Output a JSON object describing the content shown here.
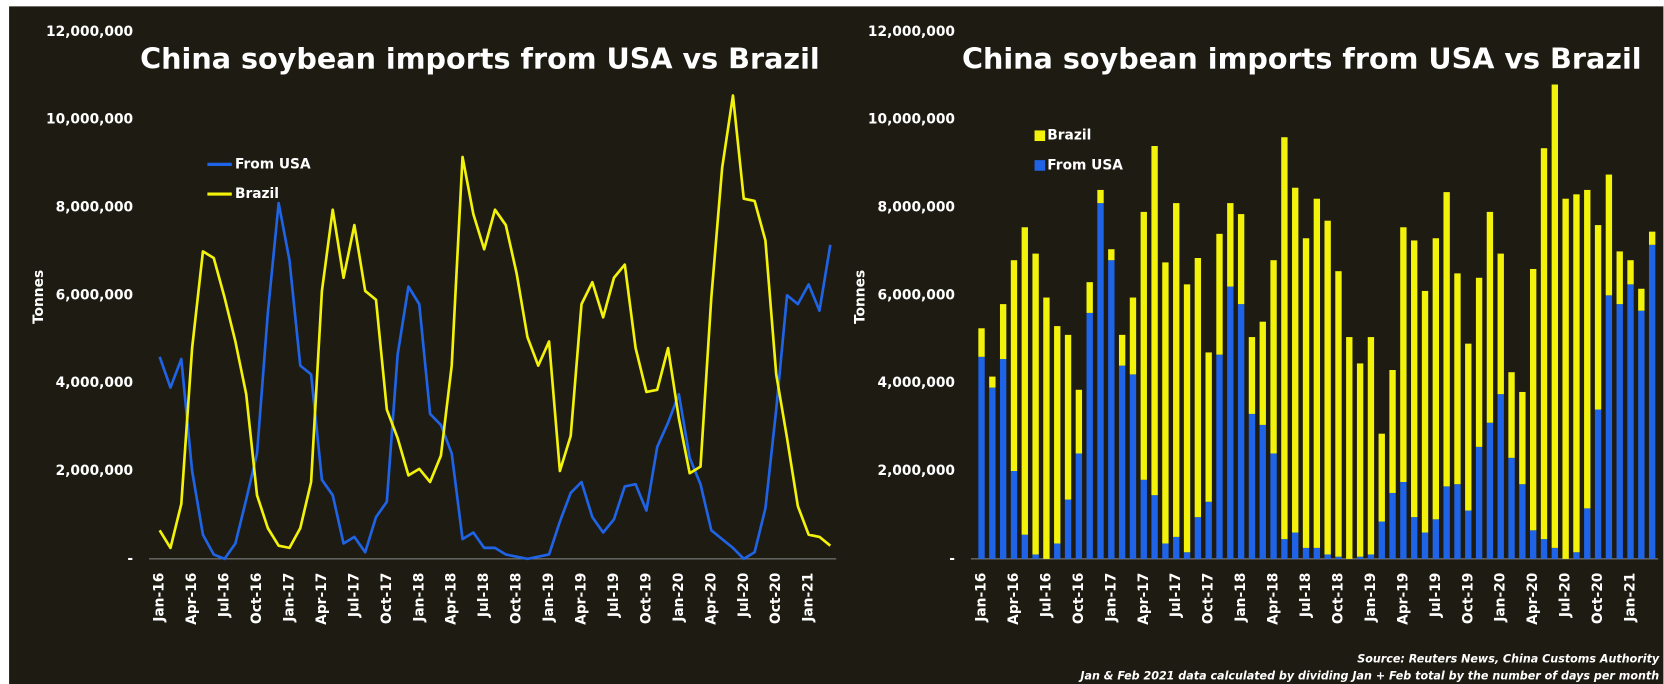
{
  "chart_data": [
    {
      "type": "line",
      "title": "China soybean imports from USA vs Brazil",
      "y_label": "Tonnes",
      "categories": [
        "Jan-16",
        null,
        null,
        "Apr-16",
        null,
        null,
        "Jul-16",
        null,
        null,
        "Oct-16",
        null,
        null,
        "Jan-17",
        null,
        null,
        "Apr-17",
        null,
        null,
        "Jul-17",
        null,
        null,
        "Oct-17",
        null,
        null,
        "Jan-18",
        null,
        null,
        "Apr-18",
        null,
        null,
        "Jul-18",
        null,
        null,
        "Oct-18",
        null,
        null,
        "Jan-19",
        null,
        null,
        "Apr-19",
        null,
        null,
        "Jul-19",
        null,
        null,
        "Oct-19",
        null,
        null,
        "Jan-20",
        null,
        null,
        "Apr-20",
        null,
        null,
        "Jul-20",
        null,
        null,
        "Oct-20",
        null,
        null,
        "Jan-21",
        null,
        null
      ],
      "series": [
        {
          "name": "From USA",
          "color": "#1f63e6",
          "values": [
            4600000,
            3900000,
            4550000,
            2000000,
            550000,
            100000,
            0,
            350000,
            1350000,
            2400000,
            5600000,
            8100000,
            6800000,
            4400000,
            4200000,
            1800000,
            1450000,
            350000,
            500000,
            150000,
            950000,
            1300000,
            4650000,
            6200000,
            5800000,
            3300000,
            3050000,
            2400000,
            450000,
            600000,
            250000,
            250000,
            100000,
            50000,
            0,
            50000,
            100000,
            850000,
            1500000,
            1750000,
            950000,
            600000,
            900000,
            1650000,
            1700000,
            1100000,
            2550000,
            3100000,
            3750000,
            2300000,
            1700000,
            650000,
            450000,
            250000,
            0,
            150000,
            1150000,
            3400000,
            6000000,
            5800000,
            6250000,
            5650000,
            7150000
          ]
        },
        {
          "name": "Brazil",
          "color": "#f2f20a",
          "values": [
            650000,
            250000,
            1250000,
            4800000,
            7000000,
            6850000,
            5950000,
            4950000,
            3750000,
            1450000,
            700000,
            300000,
            250000,
            700000,
            1750000,
            6100000,
            7950000,
            6400000,
            7600000,
            6100000,
            5900000,
            3400000,
            2750000,
            1900000,
            2050000,
            1750000,
            2350000,
            4400000,
            9150000,
            7850000,
            7050000,
            7950000,
            7600000,
            6500000,
            5050000,
            4400000,
            4950000,
            2000000,
            2800000,
            5800000,
            6300000,
            5500000,
            6400000,
            6700000,
            4800000,
            3800000,
            3850000,
            4800000,
            3200000,
            1950000,
            2100000,
            5950000,
            8900000,
            10550000,
            8200000,
            8150000,
            7250000,
            4200000,
            2750000,
            1200000,
            550000,
            500000,
            300000
          ]
        }
      ],
      "ylim": [
        0,
        12000000
      ],
      "yticks": [
        {
          "value": 0,
          "label": "-"
        },
        {
          "value": 2000000,
          "label": "2,000,000"
        },
        {
          "value": 4000000,
          "label": "4,000,000"
        },
        {
          "value": 6000000,
          "label": "6,000,000"
        },
        {
          "value": 8000000,
          "label": "8,000,000"
        },
        {
          "value": 10000000,
          "label": "10,000,000"
        },
        {
          "value": 12000000,
          "label": "12,000,000"
        }
      ],
      "grid": false
    },
    {
      "type": "stacked_bar",
      "title": "China soybean imports from USA vs Brazil",
      "y_label": "Tonnes",
      "categories": [
        "Jan-16",
        null,
        null,
        "Apr-16",
        null,
        null,
        "Jul-16",
        null,
        null,
        "Oct-16",
        null,
        null,
        "Jan-17",
        null,
        null,
        "Apr-17",
        null,
        null,
        "Jul-17",
        null,
        null,
        "Oct-17",
        null,
        null,
        "Jan-18",
        null,
        null,
        "Apr-18",
        null,
        null,
        "Jul-18",
        null,
        null,
        "Oct-18",
        null,
        null,
        "Jan-19",
        null,
        null,
        "Apr-19",
        null,
        null,
        "Jul-19",
        null,
        null,
        "Oct-19",
        null,
        null,
        "Jan-20",
        null,
        null,
        "Apr-20",
        null,
        null,
        "Jul-20",
        null,
        null,
        "Oct-20",
        null,
        null,
        "Jan-21",
        null,
        null
      ],
      "series": [
        {
          "name": "From USA",
          "color": "#1f63e6",
          "values": [
            4600000,
            3900000,
            4550000,
            2000000,
            550000,
            100000,
            0,
            350000,
            1350000,
            2400000,
            5600000,
            8100000,
            6800000,
            4400000,
            4200000,
            1800000,
            1450000,
            350000,
            500000,
            150000,
            950000,
            1300000,
            4650000,
            6200000,
            5800000,
            3300000,
            3050000,
            2400000,
            450000,
            600000,
            250000,
            250000,
            100000,
            50000,
            0,
            50000,
            100000,
            850000,
            1500000,
            1750000,
            950000,
            600000,
            900000,
            1650000,
            1700000,
            1100000,
            2550000,
            3100000,
            3750000,
            2300000,
            1700000,
            650000,
            450000,
            250000,
            0,
            150000,
            1150000,
            3400000,
            6000000,
            5800000,
            6250000,
            5650000,
            7150000
          ]
        },
        {
          "name": "Brazil",
          "color": "#f2f20a",
          "values": [
            650000,
            250000,
            1250000,
            4800000,
            7000000,
            6850000,
            5950000,
            4950000,
            3750000,
            1450000,
            700000,
            300000,
            250000,
            700000,
            1750000,
            6100000,
            7950000,
            6400000,
            7600000,
            6100000,
            5900000,
            3400000,
            2750000,
            1900000,
            2050000,
            1750000,
            2350000,
            4400000,
            9150000,
            7850000,
            7050000,
            7950000,
            7600000,
            6500000,
            5050000,
            4400000,
            4950000,
            2000000,
            2800000,
            5800000,
            6300000,
            5500000,
            6400000,
            6700000,
            4800000,
            3800000,
            3850000,
            4800000,
            3200000,
            1950000,
            2100000,
            5950000,
            8900000,
            10550000,
            8200000,
            8150000,
            7250000,
            4200000,
            2750000,
            1200000,
            550000,
            500000,
            300000
          ]
        }
      ],
      "ylim": [
        0,
        12000000
      ],
      "yticks": [
        {
          "value": 0,
          "label": "-"
        },
        {
          "value": 2000000,
          "label": "2,000,000"
        },
        {
          "value": 4000000,
          "label": "4,000,000"
        },
        {
          "value": 6000000,
          "label": "6,000,000"
        },
        {
          "value": 8000000,
          "label": "8,000,000"
        },
        {
          "value": 10000000,
          "label": "10,000,000"
        },
        {
          "value": 12000000,
          "label": "12,000,000"
        }
      ],
      "grid": false
    }
  ],
  "footer": {
    "source": "Source: Reuters News, China Customs Authority",
    "note": "Jan & Feb 2021 data calculated by dividing Jan + Feb total by the number of days per month"
  }
}
